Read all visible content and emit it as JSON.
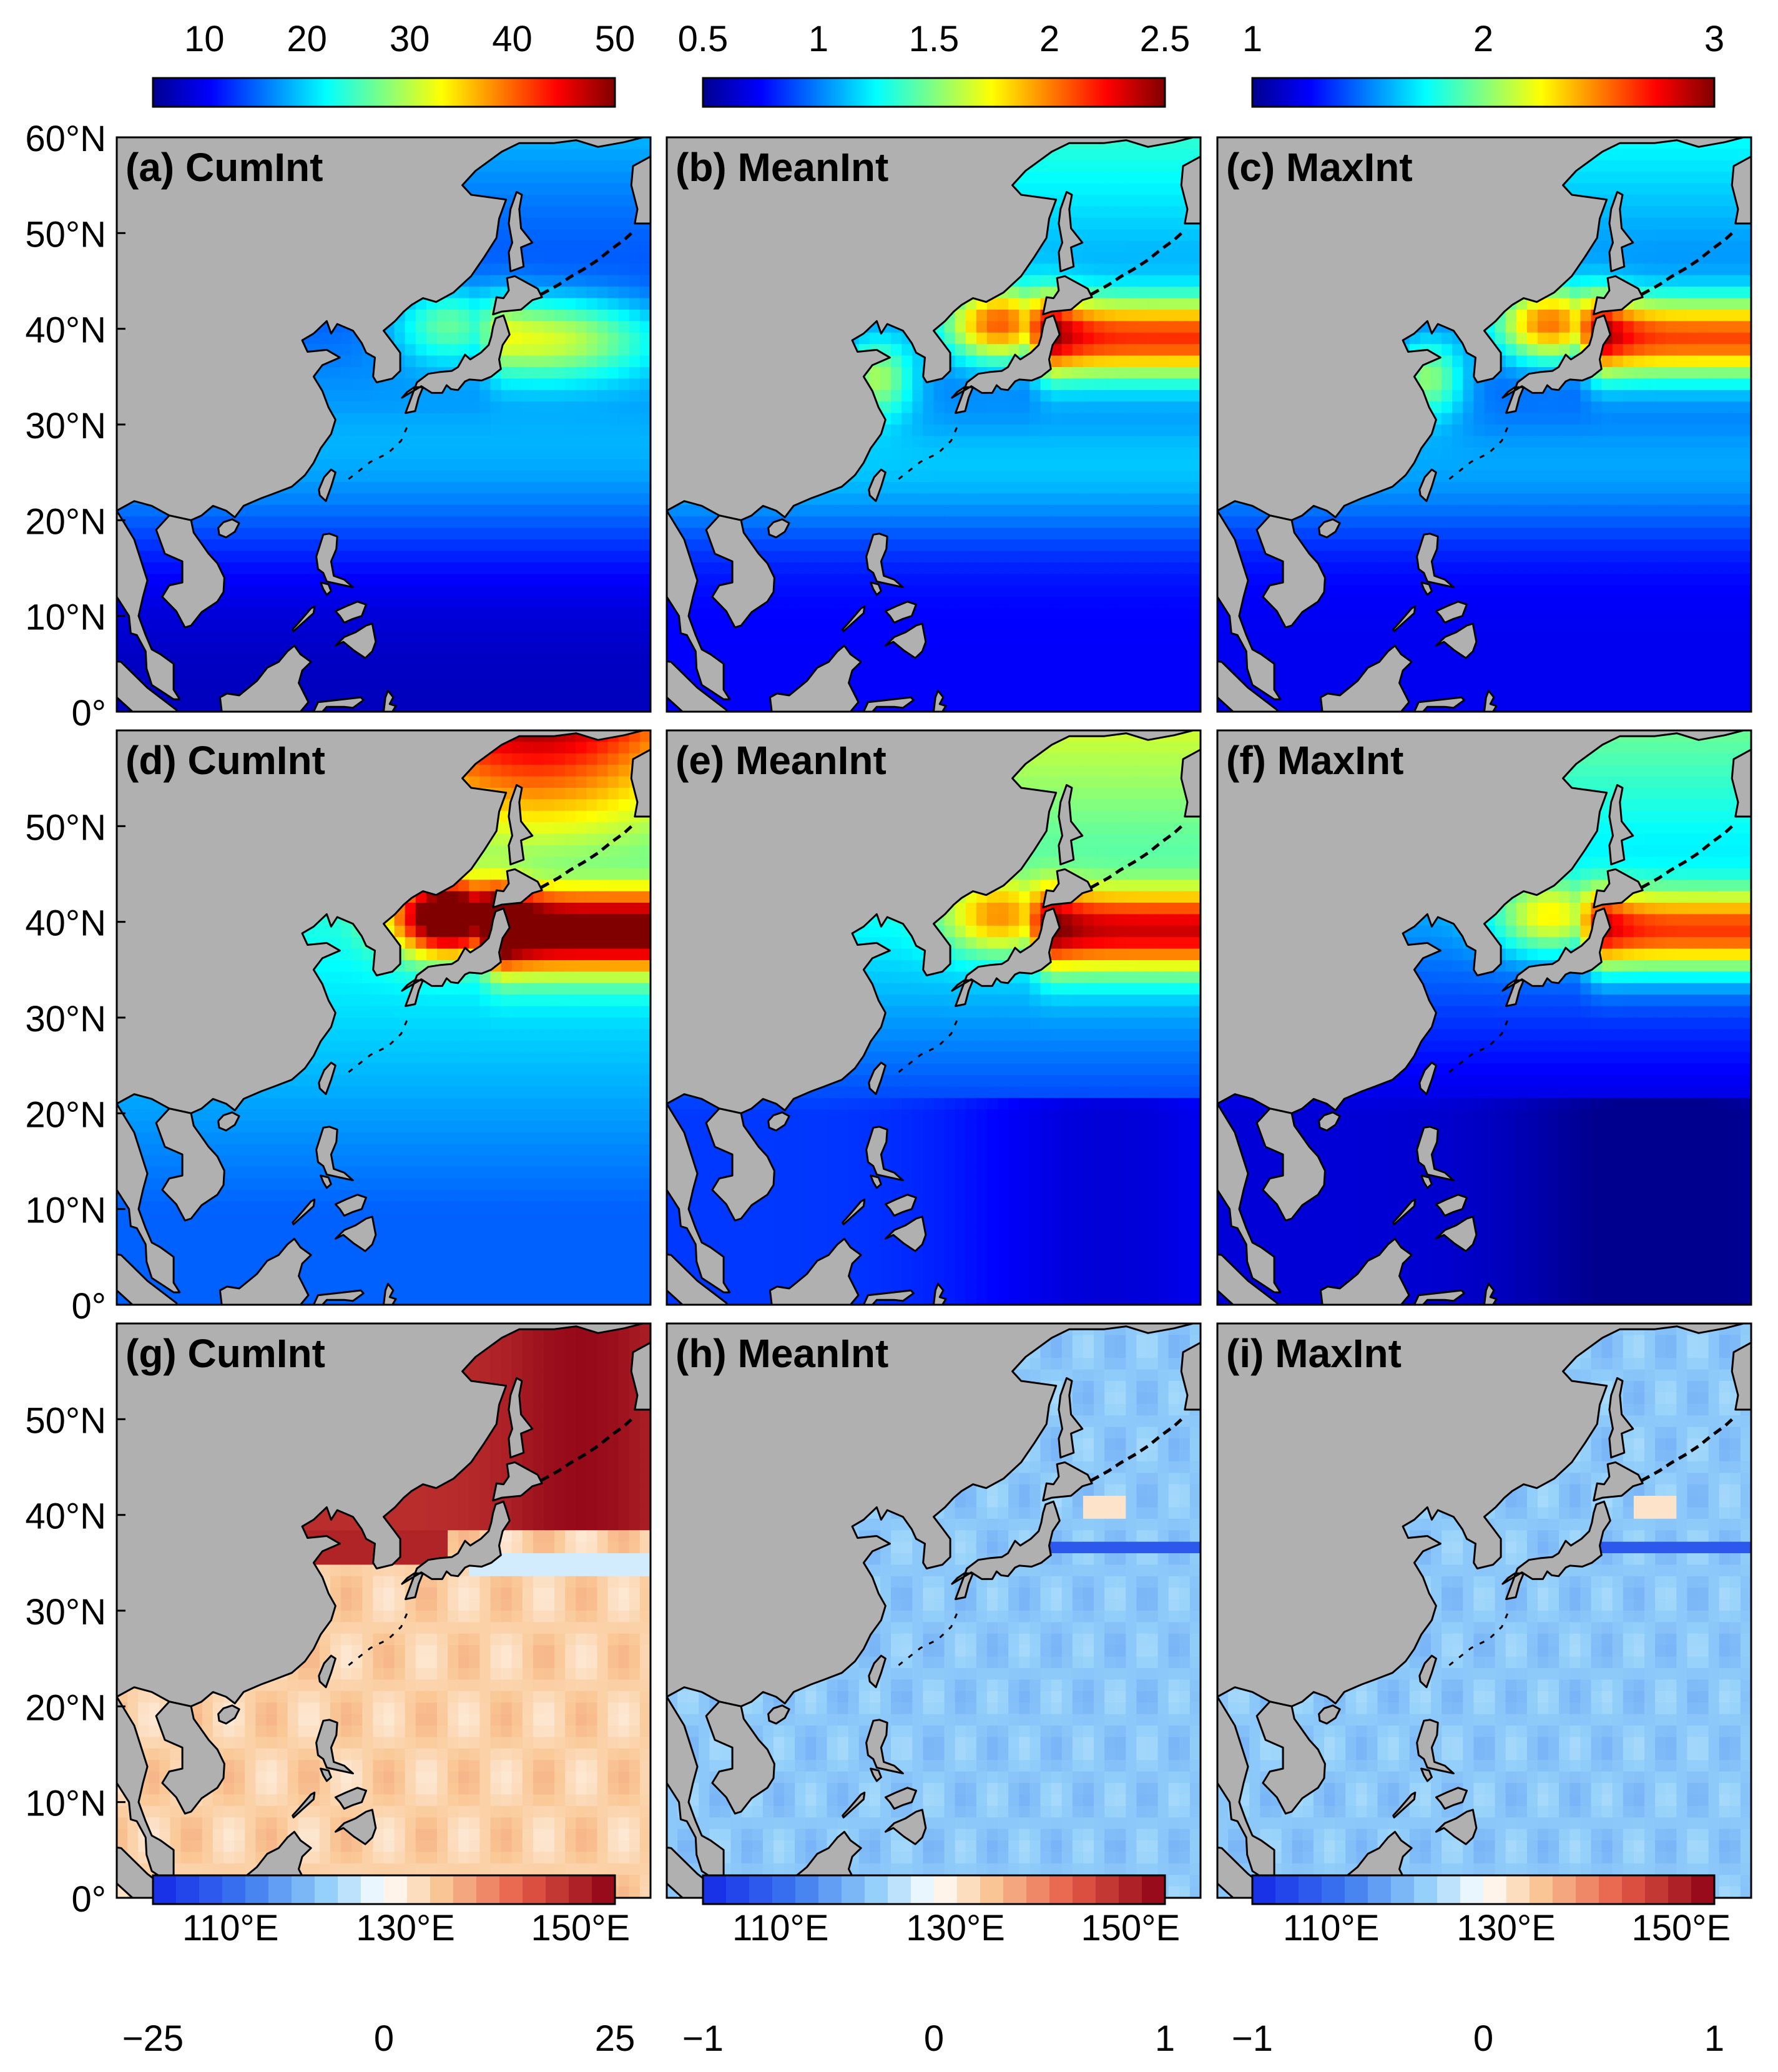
{
  "figure": {
    "colorbars_top": [
      {
        "ticks": [
          "10",
          "20",
          "30",
          "40",
          "50"
        ],
        "min": 5,
        "max": 50,
        "colormap": "jet",
        "column": 1
      },
      {
        "ticks": [
          "0.5",
          "1",
          "1.5",
          "2",
          "2.5"
        ],
        "min": 0.5,
        "max": 2.5,
        "colormap": "jet",
        "column": 2
      },
      {
        "ticks": [
          "1",
          "2",
          "3"
        ],
        "min": 1,
        "max": 3,
        "colormap": "jet",
        "column": 3
      }
    ],
    "colorbars_bottom": [
      {
        "ticks": [
          "−25",
          "0",
          "25"
        ],
        "min": -25,
        "max": 25,
        "colormap": "diverging-blue-red",
        "levels": 20,
        "column": 1
      },
      {
        "ticks": [
          "−1",
          "0",
          "1"
        ],
        "min": -1,
        "max": 1,
        "colormap": "diverging-blue-red",
        "levels": 20,
        "column": 2
      },
      {
        "ticks": [
          "−1",
          "0",
          "1"
        ],
        "min": -1,
        "max": 1,
        "colormap": "diverging-blue-red",
        "levels": 20,
        "column": 3
      }
    ],
    "lat_ticks": [
      "60°N",
      "50°N",
      "40°N",
      "30°N",
      "20°N",
      "10°N",
      "0°"
    ],
    "lon_ticks": [
      "110°E",
      "130°E",
      "150°E"
    ],
    "colors": {
      "land": "#b0b0b0",
      "coast": "#000000"
    }
  },
  "chart_data": [
    {
      "type": "heatmap",
      "panel": "(a) CumInt",
      "title": "(a) CumInt",
      "row": 1,
      "column": 1,
      "xlim": [
        97,
        158
      ],
      "ylim": [
        0,
        60
      ],
      "colorbar_range": [
        5,
        50
      ]
    },
    {
      "type": "heatmap",
      "panel": "(b) MeanInt",
      "title": "(b) MeanInt",
      "row": 1,
      "column": 2,
      "xlim": [
        97,
        158
      ],
      "ylim": [
        0,
        60
      ],
      "colorbar_range": [
        0.5,
        2.5
      ]
    },
    {
      "type": "heatmap",
      "panel": "(c) MaxInt",
      "title": "(c) MaxInt",
      "row": 1,
      "column": 3,
      "xlim": [
        97,
        158
      ],
      "ylim": [
        0,
        60
      ],
      "colorbar_range": [
        1,
        3
      ]
    },
    {
      "type": "heatmap",
      "panel": "(d) CumInt",
      "title": "(d) CumInt",
      "row": 2,
      "column": 1,
      "xlim": [
        97,
        158
      ],
      "ylim": [
        0,
        60
      ],
      "colorbar_range": [
        5,
        50
      ]
    },
    {
      "type": "heatmap",
      "panel": "(e) MeanInt",
      "title": "(e) MeanInt",
      "row": 2,
      "column": 2,
      "xlim": [
        97,
        158
      ],
      "ylim": [
        0,
        60
      ],
      "colorbar_range": [
        0.5,
        2.5
      ]
    },
    {
      "type": "heatmap",
      "panel": "(f) MaxInt",
      "title": "(f) MaxInt",
      "row": 2,
      "column": 3,
      "xlim": [
        97,
        158
      ],
      "ylim": [
        0,
        60
      ],
      "colorbar_range": [
        1,
        3
      ]
    },
    {
      "type": "heatmap",
      "panel": "(g) CumInt",
      "title": "(g) CumInt",
      "row": 3,
      "column": 1,
      "xlim": [
        97,
        158
      ],
      "ylim": [
        0,
        60
      ],
      "colorbar_range": [
        -25,
        25
      ]
    },
    {
      "type": "heatmap",
      "panel": "(h) MeanInt",
      "title": "(h) MeanInt",
      "row": 3,
      "column": 2,
      "xlim": [
        97,
        158
      ],
      "ylim": [
        0,
        60
      ],
      "colorbar_range": [
        -1,
        1
      ]
    },
    {
      "type": "heatmap",
      "panel": "(i) MaxInt",
      "title": "(i) MaxInt",
      "row": 3,
      "column": 3,
      "xlim": [
        97,
        158
      ],
      "ylim": [
        0,
        60
      ],
      "colorbar_range": [
        -1,
        1
      ]
    }
  ]
}
